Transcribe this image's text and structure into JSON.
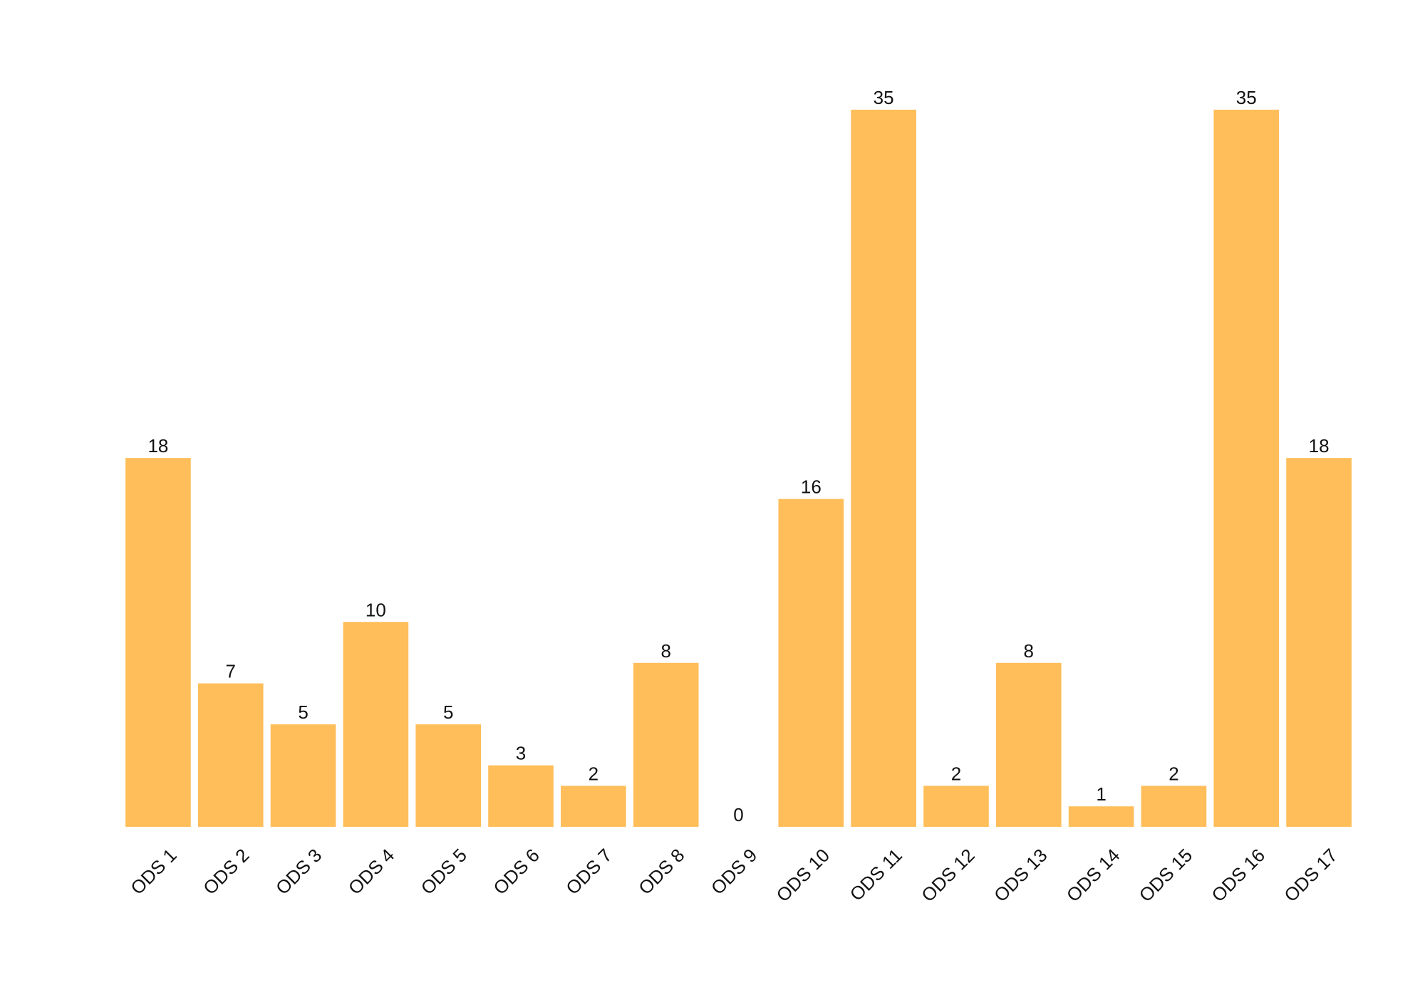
{
  "chart_data": {
    "type": "bar",
    "categories": [
      "ODS 1",
      "ODS 2",
      "ODS 3",
      "ODS 4",
      "ODS 5",
      "ODS 6",
      "ODS 7",
      "ODS 8",
      "ODS 9",
      "ODS 10",
      "ODS 11",
      "ODS 12",
      "ODS 13",
      "ODS 14",
      "ODS 15",
      "ODS 16",
      "ODS 17"
    ],
    "values": [
      18,
      7,
      5,
      10,
      5,
      3,
      2,
      8,
      0,
      16,
      35,
      2,
      8,
      1,
      2,
      35,
      18
    ],
    "color": "#ffbe5a"
  }
}
